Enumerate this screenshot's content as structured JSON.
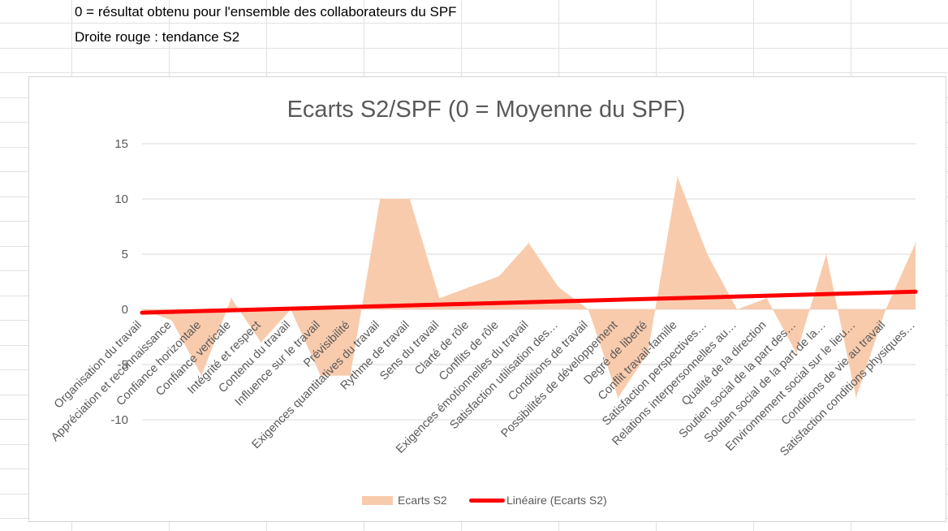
{
  "sheet": {
    "note_line_1": "0 = résultat obtenu pour l'ensemble des collaborateurs du SPF",
    "note_line_2": "Droite rouge : tendance S2"
  },
  "colors": {
    "area_fill": "#f8cbad",
    "trend_line": "#ff0000",
    "grid": "#d9d9d9",
    "text": "#595959"
  },
  "chart_data": {
    "type": "area",
    "title": "Ecarts S2/SPF (0 = Moyenne du SPF)",
    "ylim": [
      -10,
      15
    ],
    "yticks": [
      -10,
      -5,
      0,
      5,
      10,
      15
    ],
    "ytick_labels": [
      "-10",
      "-5",
      "0",
      "5",
      "10",
      "15"
    ],
    "grid": true,
    "legend_position": "bottom",
    "categories": [
      "Organisation du travail",
      "Appréciation et reconnaissance",
      "Confiance horizontale",
      "Confiance verticale",
      "Intégrité et respect",
      "Contenu du travail",
      "Influence sur le travail",
      "Prévisibilité",
      "Exigences quantitatives du travail",
      "Rythme de travail",
      "Sens du travail",
      "Clarté de rôle",
      "Conflits de rôle",
      "Exigences émotionnelles du travail",
      "Satisfaction utilisation des…",
      "Conditions de travail",
      "Possibilités de développement",
      "Degré de liberté",
      "Conflit travail-famille",
      "Satisfaction perspectives…",
      "Relations interpersonnelles au…",
      "Qualité de la direction",
      "Soutien social de la part des…",
      "Soutien social de la part de la…",
      "Environnement social sur le lieu…",
      "Conditions de vie au travail",
      "Satisfaction conditions physiques…"
    ],
    "series": [
      {
        "name": "Ecarts S2",
        "values": [
          0,
          -1,
          -6,
          1,
          -3,
          0,
          -6,
          -6,
          10,
          10,
          1,
          2,
          3,
          6,
          2,
          0,
          -8,
          -4,
          12,
          5,
          0,
          1,
          -4,
          5,
          -8,
          0,
          6
        ]
      }
    ],
    "trendline": {
      "name": "Linéaire (Ecarts S2)",
      "start": -0.3,
      "end": 1.6
    }
  }
}
